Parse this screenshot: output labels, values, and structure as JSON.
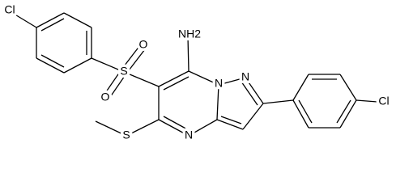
{
  "atoms": [
    {
      "label": "Cl"
    },
    {
      "label": "S"
    },
    {
      "label": "O"
    },
    {
      "label": "O"
    },
    {
      "label": "NH2"
    },
    {
      "label": "N"
    },
    {
      "label": "N"
    },
    {
      "label": "S"
    },
    {
      "label": "N"
    },
    {
      "label": "Cl"
    }
  ]
}
